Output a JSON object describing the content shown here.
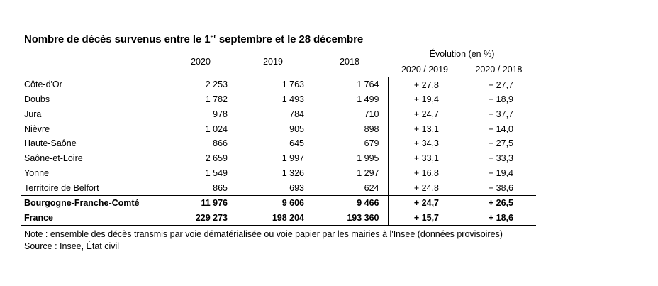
{
  "title": {
    "before_sup": "Nombre de décès survenus entre le 1",
    "sup": "er",
    "after_sup": " septembre et le 28 décembre"
  },
  "headers": {
    "year_2020": "2020",
    "year_2019": "2019",
    "year_2018": "2018",
    "evolution": "Évolution (en %)",
    "ev_2020_2019": "2020 / 2019",
    "ev_2020_2018": "2020 / 2018"
  },
  "rows": [
    {
      "name": "Côte-d'Or",
      "v2020": "2 253",
      "v2019": "1 763",
      "v2018": "1 764",
      "ev1": "+ 27,8",
      "ev2": "+ 27,7"
    },
    {
      "name": "Doubs",
      "v2020": "1 782",
      "v2019": "1 493",
      "v2018": "1 499",
      "ev1": "+ 19,4",
      "ev2": "+ 18,9"
    },
    {
      "name": "Jura",
      "v2020": "978",
      "v2019": "784",
      "v2018": "710",
      "ev1": "+ 24,7",
      "ev2": "+ 37,7"
    },
    {
      "name": "Nièvre",
      "v2020": "1 024",
      "v2019": "905",
      "v2018": "898",
      "ev1": "+ 13,1",
      "ev2": "+ 14,0"
    },
    {
      "name": "Haute-Saône",
      "v2020": "866",
      "v2019": "645",
      "v2018": "679",
      "ev1": "+ 34,3",
      "ev2": "+ 27,5"
    },
    {
      "name": "Saône-et-Loire",
      "v2020": "2 659",
      "v2019": "1 997",
      "v2018": "1 995",
      "ev1": "+ 33,1",
      "ev2": "+ 33,3"
    },
    {
      "name": "Yonne",
      "v2020": "1 549",
      "v2019": "1 326",
      "v2018": "1 297",
      "ev1": "+ 16,8",
      "ev2": "+ 19,4"
    },
    {
      "name": "Territoire de Belfort",
      "v2020": "865",
      "v2019": "693",
      "v2018": "624",
      "ev1": "+ 24,8",
      "ev2": "+ 38,6"
    },
    {
      "name": "Bourgogne-Franche-Comté",
      "v2020": "11 976",
      "v2019": "9 606",
      "v2018": "9 466",
      "ev1": "+ 24,7",
      "ev2": "+ 26,5"
    },
    {
      "name": "France",
      "v2020": "229 273",
      "v2019": "198 204",
      "v2018": "193 360",
      "ev1": "+ 15,7",
      "ev2": "+ 18,6"
    }
  ],
  "note": "Note : ensemble des décès transmis par voie dématérialisée ou voie papier par les mairies à l'Insee (données provisoires)",
  "source": "Source : Insee, État civil"
}
